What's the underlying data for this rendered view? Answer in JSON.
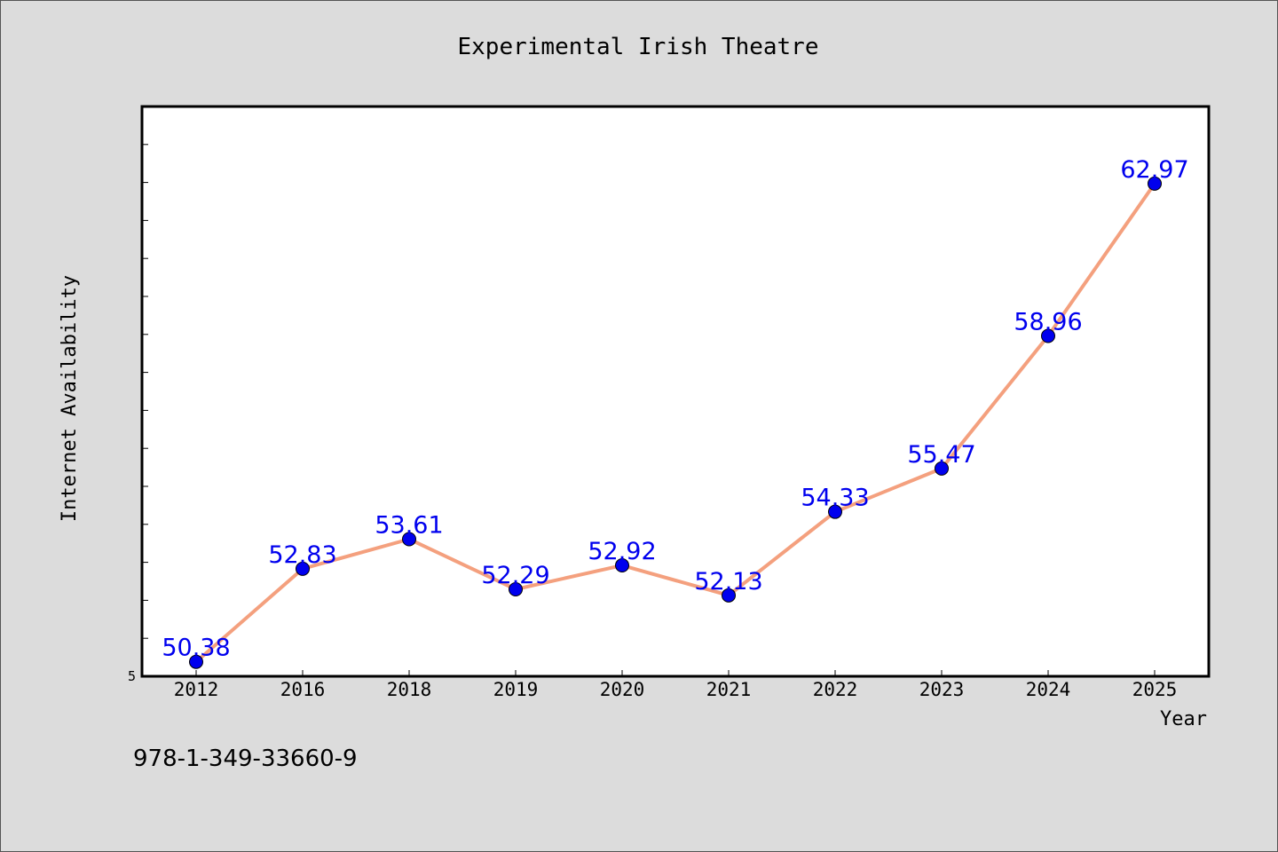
{
  "title": "Experimental Irish Theatre",
  "footer": {
    "isbn": "978-1-349-33660-9"
  },
  "colors": {
    "background": "#dcdcdc",
    "plot_background": "#ffffff",
    "line": "#f4a07e",
    "marker": "#0000ee",
    "data_label": "#0000ee"
  },
  "chart_data": {
    "type": "line",
    "title": "Experimental Irish Theatre",
    "xlabel": "Year",
    "ylabel": "Internet Availability",
    "categories": [
      "2012",
      "2016",
      "2018",
      "2019",
      "2020",
      "2021",
      "2022",
      "2023",
      "2024",
      "2025"
    ],
    "series": [
      {
        "values": [
          50.38,
          52.83,
          53.61,
          52.29,
          52.92,
          52.13,
          54.33,
          55.47,
          58.96,
          62.97
        ]
      }
    ],
    "ytick_labels": [
      "5"
    ],
    "ylim": [
      50.0,
      65.0
    ],
    "grid": false,
    "legend": "none"
  }
}
